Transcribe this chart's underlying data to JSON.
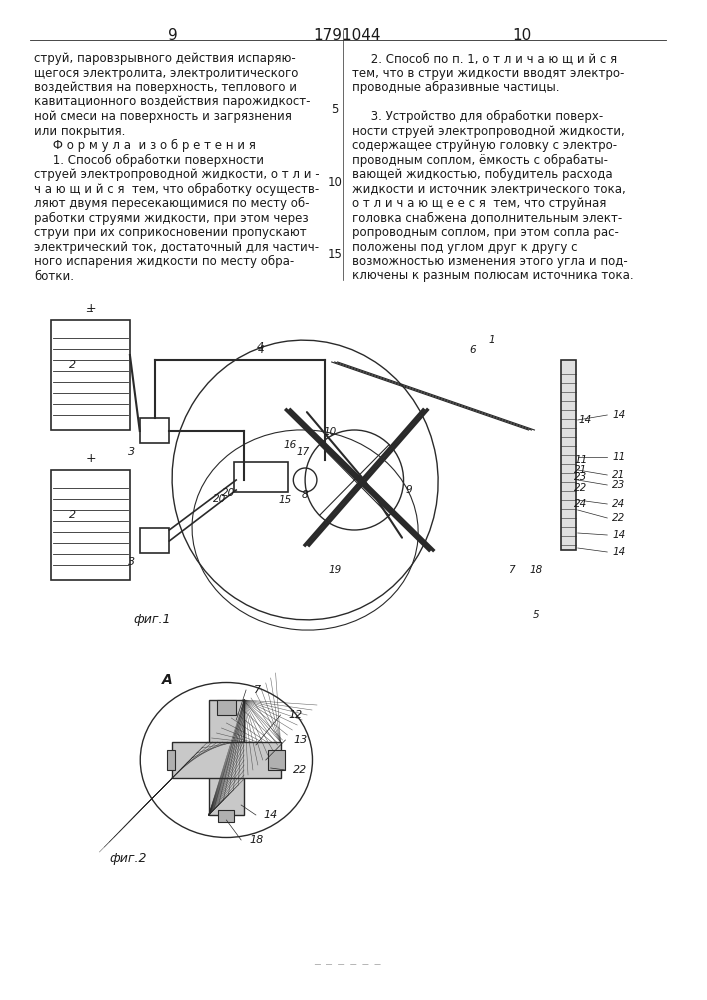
{
  "page_numbers": [
    "9",
    "10"
  ],
  "patent_number": "1791044",
  "background_color": "#ffffff",
  "text_color": "#1a1a1a",
  "line_color": "#2a2a2a",
  "left_column_text": [
    "струй, паровзрывного действия испаряю-",
    "щегося электролита, электролитического",
    "воздействия на поверхность, теплового и",
    "кавитационного воздействия парожидкост-",
    "ной смеси на поверхность и загрязнения",
    "или покрытия.",
    "     Ф о р м у л а  и з о б р е т е н и я",
    "     1. Способ обработки поверхности",
    "струей электропроводной жидкости, о т л и -",
    "ч а ю щ и й с я  тем, что обработку осуществ-",
    "ляют двумя пересекающимися по месту об-",
    "работки струями жидкости, при этом через",
    "струи при их соприкосновении пропускают",
    "электрический ток, достаточный для частич-",
    "ного испарения жидкости по месту обра-",
    "ботки."
  ],
  "right_column_text": [
    "     2. Способ по п. 1, о т л и ч а ю щ и й с я",
    "тем, что в струи жидкости вводят электро-",
    "проводные абразивные частицы.",
    "",
    "     3. Устройство для обработки поверх-",
    "ности струей электропроводной жидкости,",
    "содержащее струйную головку с электро-",
    "проводным соплом, ёмкость с обрабаты-",
    "вающей жидкостью, побудитель расхода",
    "жидкости и источник электрического тока,",
    "о т л и ч а ю щ е е с я  тем, что струйная",
    "головка снабжена дополнительным элект-",
    "ропроводным соплом, при этом сопла рас-",
    "положены под углом друг к другу с",
    "возможностью изменения этого угла и под-",
    "ключены к разным полюсам источника тока."
  ],
  "line_numbers_right": [
    "5",
    "10",
    "15"
  ],
  "fig1_caption": "фиг.1",
  "fig2_caption": "фиг.2"
}
